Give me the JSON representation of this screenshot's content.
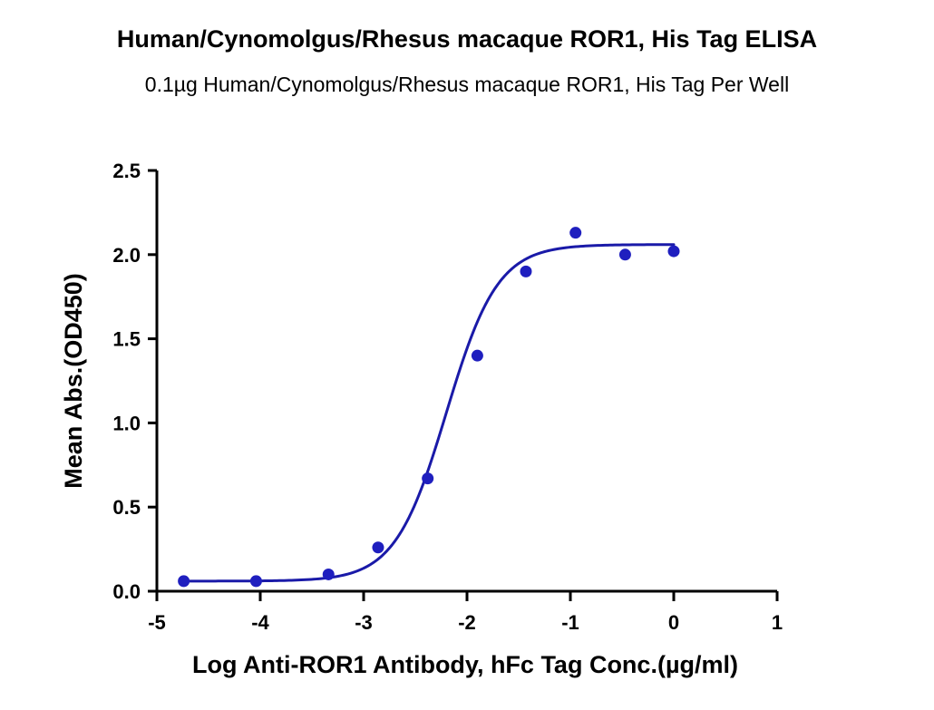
{
  "chart_data": {
    "type": "scatter",
    "title": "Human/Cynomolgus/Rhesus macaque ROR1, His Tag ELISA",
    "subtitle": "0.1µg Human/Cynomolgus/Rhesus macaque ROR1, His Tag Per Well",
    "xlabel": "Log Anti-ROR1 Antibody, hFc Tag Conc.(µg/ml)",
    "ylabel": "Mean Abs.(OD450)",
    "xlim": [
      -5,
      1
    ],
    "ylim": [
      0,
      2.5
    ],
    "x_ticks": [
      -5,
      -4,
      -3,
      -2,
      -1,
      0,
      1
    ],
    "x_tick_labels": [
      "-5",
      "-4",
      "-3",
      "-2",
      "-1",
      "0",
      "1"
    ],
    "y_ticks": [
      0,
      0.5,
      1.0,
      1.5,
      2.0,
      2.5
    ],
    "y_tick_labels": [
      "0.0",
      "0.5",
      "1.0",
      "1.5",
      "2.0",
      "2.5"
    ],
    "grid": false,
    "series": [
      {
        "x": [
          -4.74,
          -4.04,
          -3.34,
          -2.86,
          -2.38,
          -1.9,
          -1.43,
          -0.95,
          -0.47,
          0.0
        ],
        "y": [
          0.06,
          0.06,
          0.1,
          0.26,
          0.67,
          1.4,
          1.9,
          2.13,
          2.0,
          2.02
        ],
        "color": "#1f1fbf",
        "fit": {
          "type": "4PL sigmoid curve",
          "bottom": 0.06,
          "top": 2.06,
          "logEC50": -2.2,
          "hill": 1.75,
          "color": "#1a1aa8"
        }
      }
    ]
  }
}
